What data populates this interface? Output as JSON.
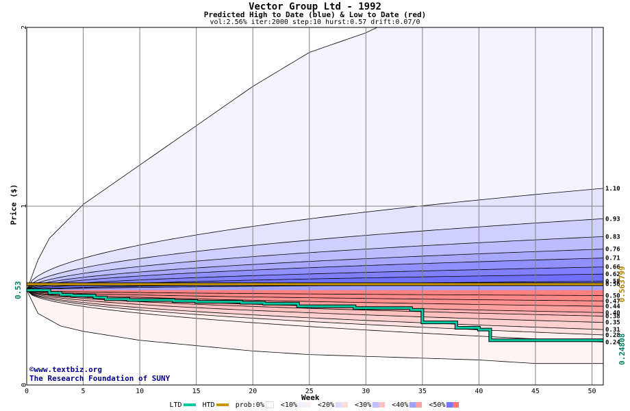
{
  "header": {
    "title": "Vector Group Ltd - 1992",
    "subtitle": "Predicted High to Date (blue) &  Low to Date (red)",
    "params": "vol:2.56% iter:2000 step:10 hurst:0.57 drift:0.07/0"
  },
  "credits": {
    "line1": "©www.textbiz.org",
    "line2": "The Research Foundation of SUNY"
  },
  "legend": {
    "ltd": "LTD",
    "htd": "HTD",
    "prob": "prob:0%",
    "b1": "<10%",
    "b2": "<20%",
    "b3": "<30%",
    "b4": "<40%",
    "b5": "<50%"
  },
  "colors": {
    "ltd_line": "#00c8a0",
    "htd_line": "#c89600",
    "blue_band": "#5050ff",
    "red_band": "#ff5050",
    "grid": "#808080"
  },
  "chart_data": {
    "type": "line",
    "title": "Vector Group Ltd - 1992",
    "subtitle": "Predicted High to Date (blue) &  Low to Date (red)",
    "xlabel": "Week",
    "ylabel": "Price ($)",
    "xlim": [
      0,
      51
    ],
    "ylim": [
      0,
      2
    ],
    "x_ticks": [
      0,
      5,
      10,
      15,
      20,
      25,
      30,
      35,
      40,
      45,
      50
    ],
    "y_ticks": [
      0,
      1,
      2
    ],
    "grid": true,
    "start_price": 0.53,
    "start_price_label": "0.53",
    "htd_value_label": "0.563799",
    "ltd_value_label": "0.24808",
    "upper_envelope": {
      "x": [
        0,
        1,
        2,
        5,
        10,
        15,
        20,
        25,
        30,
        31,
        51
      ],
      "y": [
        0.53,
        0.7,
        0.82,
        1.01,
        1.23,
        1.45,
        1.67,
        1.86,
        1.97,
        2.0,
        2.0
      ]
    },
    "lower_envelope": {
      "x": [
        0,
        1,
        3,
        5,
        10,
        15,
        20,
        25,
        30,
        35,
        40,
        45,
        51
      ],
      "y": [
        0.53,
        0.4,
        0.33,
        0.3,
        0.25,
        0.22,
        0.19,
        0.17,
        0.16,
        0.15,
        0.14,
        0.12,
        0.12
      ]
    },
    "blue_quantile_labels": [
      "1.10",
      "0.93",
      "0.83",
      "0.76",
      "0.71",
      "0.66",
      "0.62",
      "0.58",
      "0.56"
    ],
    "blue_quantile_end_values": [
      1.1,
      0.93,
      0.83,
      0.76,
      0.71,
      0.66,
      0.62,
      0.58,
      0.565
    ],
    "red_quantile_labels": [
      "0.50",
      "0.47",
      "0.44",
      "0.40",
      "0.38",
      "0.35",
      "0.31",
      "0.28",
      "0.24"
    ],
    "red_quantile_end_values": [
      0.5,
      0.47,
      0.44,
      0.405,
      0.385,
      0.35,
      0.31,
      0.28,
      0.24
    ],
    "htd_series": {
      "name": "HTD",
      "x": [
        0,
        46,
        51
      ],
      "y": [
        0.563799,
        0.563799,
        0.563799
      ]
    },
    "ltd_series": {
      "name": "LTD",
      "x": [
        0,
        2,
        3,
        4,
        6,
        7,
        9,
        13,
        15,
        19,
        21,
        24,
        28,
        29,
        34,
        35,
        37,
        38,
        40,
        41,
        51
      ],
      "y": [
        0.53,
        0.515,
        0.505,
        0.5,
        0.49,
        0.48,
        0.475,
        0.47,
        0.465,
        0.46,
        0.455,
        0.44,
        0.44,
        0.43,
        0.42,
        0.35,
        0.35,
        0.32,
        0.31,
        0.25,
        0.25
      ]
    }
  }
}
